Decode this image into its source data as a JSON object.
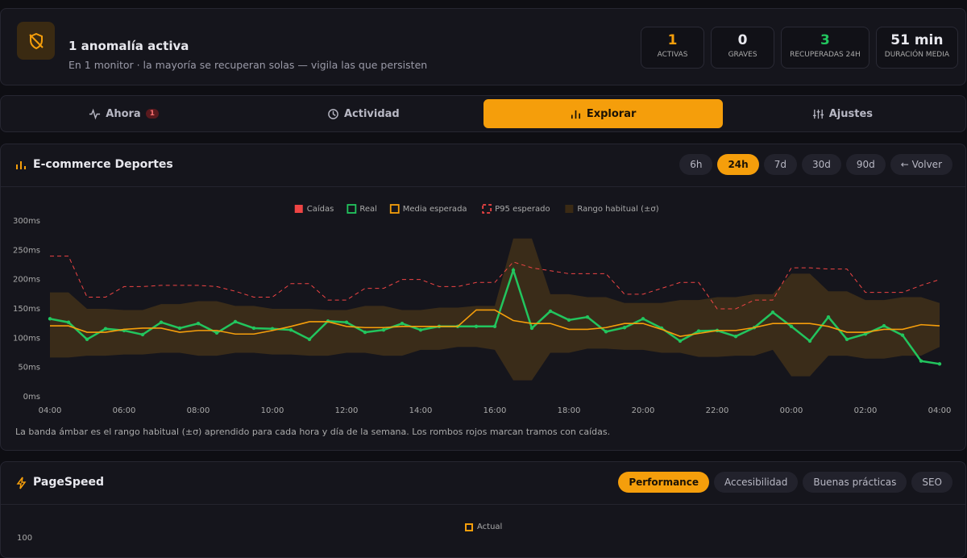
{
  "header": {
    "title": "1 anomalía activa",
    "subtitle": "En 1 monitor · la mayoría se recuperan solas — vigila las que persisten",
    "stats": [
      {
        "value": "1",
        "label": "ACTIVAS"
      },
      {
        "value": "0",
        "label": "GRAVES"
      },
      {
        "value": "3",
        "label": "RECUPERADAS 24H"
      },
      {
        "value": "51 min",
        "label": "DURACIÓN MEDIA"
      }
    ]
  },
  "tabs": {
    "items": [
      "Ahora",
      "Actividad",
      "Explorar",
      "Ajustes"
    ],
    "badge": "1"
  },
  "panel": {
    "title": "E-commerce Deportes",
    "ranges": [
      "6h",
      "24h",
      "7d",
      "30d",
      "90d"
    ],
    "back": "Volver",
    "note": "La banda ámbar es el rango habitual (±σ) aprendido para cada hora y día de la semana. Los rombos rojos marcan tramos con caídas."
  },
  "chart_data": {
    "type": "line",
    "x": [
      0,
      0.5,
      1,
      1.5,
      2,
      2.5,
      3,
      3.5,
      4,
      4.5,
      5,
      5.5,
      6,
      6.5,
      7,
      7.5,
      8,
      8.5,
      9,
      9.5,
      10,
      10.5,
      11,
      11.5,
      12,
      12.5,
      13,
      13.5,
      14,
      14.5,
      15,
      15.5,
      16,
      16.5,
      17,
      17.5,
      18,
      18.5,
      19,
      19.5,
      20,
      20.5,
      21,
      21.5,
      22,
      22.5,
      23,
      23.5,
      24
    ],
    "xlim": [
      0,
      24
    ],
    "xticks": [
      {
        "value": 0,
        "label": "04:00"
      },
      {
        "value": 2,
        "label": "06:00"
      },
      {
        "value": 4,
        "label": "08:00"
      },
      {
        "value": 6,
        "label": "10:00"
      },
      {
        "value": 8,
        "label": "12:00"
      },
      {
        "value": 10,
        "label": "14:00"
      },
      {
        "value": 12,
        "label": "16:00"
      },
      {
        "value": 14,
        "label": "18:00"
      },
      {
        "value": 16,
        "label": "20:00"
      },
      {
        "value": 18,
        "label": "22:00"
      },
      {
        "value": 20,
        "label": "00:00"
      },
      {
        "value": 22,
        "label": "02:00"
      },
      {
        "value": 24,
        "label": "04:00"
      }
    ],
    "ylim": [
      0,
      300
    ],
    "yticks": [
      {
        "value": 0,
        "label": "0ms"
      },
      {
        "value": 50,
        "label": "50ms"
      },
      {
        "value": 100,
        "label": "100ms"
      },
      {
        "value": 150,
        "label": "150ms"
      },
      {
        "value": 200,
        "label": "200ms"
      },
      {
        "value": 250,
        "label": "250ms"
      },
      {
        "value": 300,
        "label": "300ms"
      }
    ],
    "series": [
      {
        "name": "Caídas",
        "color": "#ef4444",
        "style": "square"
      },
      {
        "name": "Real",
        "color": "#22c55e",
        "style": "line-dots",
        "values": [
          133,
          127,
          98,
          116,
          113,
          106,
          127,
          117,
          125,
          109,
          128,
          117,
          116,
          114,
          98,
          129,
          127,
          110,
          114,
          125,
          114,
          120,
          120,
          120,
          120,
          216,
          117,
          146,
          131,
          136,
          111,
          118,
          133,
          117,
          95,
          112,
          113,
          103,
          118,
          144,
          120,
          95,
          136,
          98,
          107,
          121,
          105,
          61,
          56
        ]
      },
      {
        "name": "Media esperada",
        "color": "#f59e0b",
        "style": "line",
        "values": [
          121,
          121,
          110,
          110,
          115,
          117,
          117,
          110,
          113,
          113,
          107,
          107,
          113,
          120,
          128,
          128,
          120,
          118,
          118,
          120,
          120,
          120,
          120,
          148,
          148,
          130,
          125,
          125,
          115,
          115,
          118,
          125,
          125,
          115,
          103,
          108,
          113,
          113,
          118,
          125,
          125,
          125,
          120,
          110,
          110,
          115,
          115,
          123,
          121
        ]
      },
      {
        "name": "P95 esperado",
        "color": "#ef4444",
        "style": "dashed",
        "values": [
          240,
          240,
          170,
          170,
          188,
          188,
          190,
          190,
          190,
          188,
          180,
          170,
          170,
          193,
          193,
          165,
          165,
          185,
          185,
          200,
          200,
          188,
          188,
          195,
          195,
          230,
          220,
          215,
          210,
          210,
          210,
          175,
          175,
          185,
          195,
          195,
          150,
          150,
          165,
          165,
          220,
          220,
          218,
          218,
          178,
          178,
          178,
          190,
          200
        ]
      },
      {
        "name": "Rango habitual (±σ)",
        "color": "#f59e0b",
        "style": "band",
        "upper": [
          178,
          178,
          150,
          150,
          148,
          148,
          158,
          158,
          163,
          163,
          155,
          155,
          150,
          150,
          150,
          148,
          148,
          155,
          155,
          148,
          148,
          152,
          152,
          155,
          155,
          270,
          270,
          175,
          175,
          170,
          170,
          160,
          160,
          160,
          165,
          165,
          170,
          170,
          175,
          175,
          210,
          210,
          180,
          180,
          165,
          165,
          170,
          170,
          160
        ],
        "lower": [
          67,
          67,
          70,
          70,
          72,
          72,
          75,
          75,
          70,
          70,
          75,
          75,
          72,
          72,
          70,
          70,
          75,
          75,
          70,
          70,
          80,
          80,
          85,
          85,
          80,
          28,
          28,
          75,
          75,
          82,
          82,
          80,
          80,
          75,
          75,
          68,
          68,
          70,
          70,
          80,
          35,
          35,
          70,
          70,
          65,
          65,
          70,
          70,
          85
        ]
      }
    ]
  },
  "pagespeed": {
    "title": "PageSpeed",
    "tabs": [
      "Performance",
      "Accesibilidad",
      "Buenas prácticas",
      "SEO"
    ],
    "legend": "Actual",
    "yticks": [
      100
    ]
  }
}
